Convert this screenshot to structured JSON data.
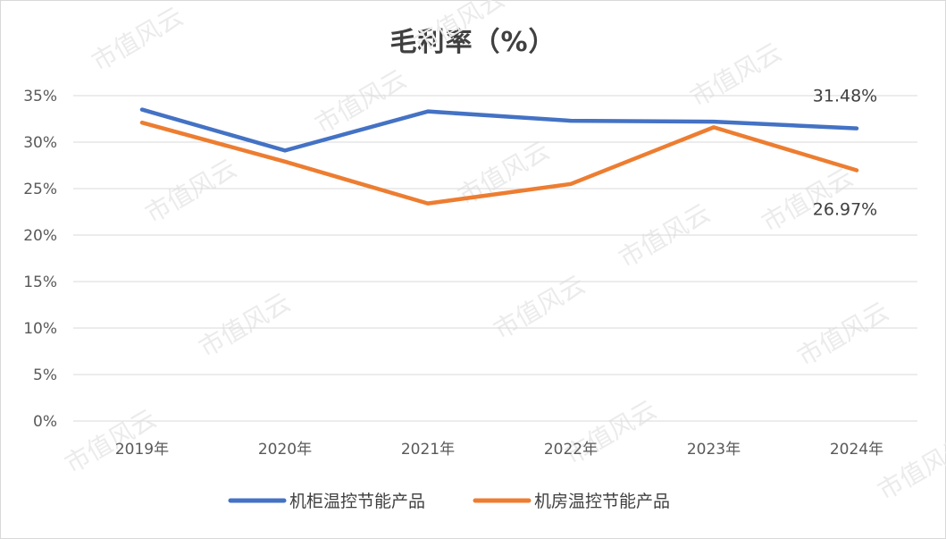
{
  "chart_data": {
    "type": "line",
    "title": "毛利率（%）",
    "categories": [
      "2019年",
      "2020年",
      "2021年",
      "2022年",
      "2023年",
      "2024年"
    ],
    "ylim": [
      0,
      35
    ],
    "yticks": [
      "0%",
      "5%",
      "10%",
      "15%",
      "20%",
      "25%",
      "30%",
      "35%"
    ],
    "grid": true,
    "legend_position": "bottom",
    "series": [
      {
        "name": "机柜温控节能产品",
        "color": "#4472C4",
        "values": [
          33.5,
          29.1,
          33.3,
          32.3,
          32.2,
          31.48
        ]
      },
      {
        "name": "机房温控节能产品",
        "color": "#ED7D31",
        "values": [
          32.1,
          27.9,
          23.4,
          25.5,
          31.6,
          26.97
        ]
      }
    ],
    "data_labels": [
      {
        "series": 0,
        "index": 5,
        "text": "31.48%"
      },
      {
        "series": 1,
        "index": 5,
        "text": "26.97%"
      }
    ]
  },
  "watermark": "市值风云"
}
